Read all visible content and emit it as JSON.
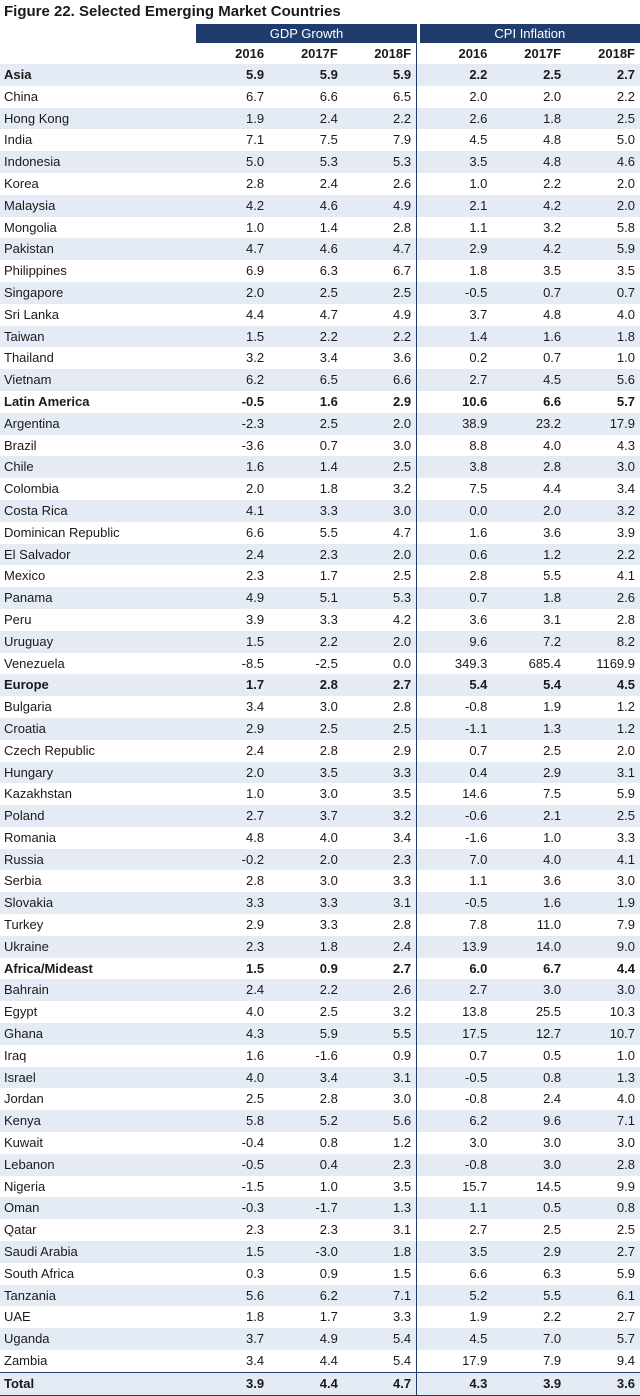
{
  "chart_data": {
    "type": "table",
    "title": "Figure 22. Selected Emerging Market Countries",
    "column_groups": [
      "GDP Growth",
      "CPI Inflation"
    ],
    "years": [
      "2016",
      "2017F",
      "2018F"
    ],
    "rows": [
      {
        "name": "Asia",
        "bold": true,
        "gdp": [
          "5.9",
          "5.9",
          "5.9"
        ],
        "cpi": [
          "2.2",
          "2.5",
          "2.7"
        ]
      },
      {
        "name": "China",
        "gdp": [
          "6.7",
          "6.6",
          "6.5"
        ],
        "cpi": [
          "2.0",
          "2.0",
          "2.2"
        ]
      },
      {
        "name": "Hong Kong",
        "gdp": [
          "1.9",
          "2.4",
          "2.2"
        ],
        "cpi": [
          "2.6",
          "1.8",
          "2.5"
        ]
      },
      {
        "name": "India",
        "gdp": [
          "7.1",
          "7.5",
          "7.9"
        ],
        "cpi": [
          "4.5",
          "4.8",
          "5.0"
        ]
      },
      {
        "name": "Indonesia",
        "gdp": [
          "5.0",
          "5.3",
          "5.3"
        ],
        "cpi": [
          "3.5",
          "4.8",
          "4.6"
        ]
      },
      {
        "name": "Korea",
        "gdp": [
          "2.8",
          "2.4",
          "2.6"
        ],
        "cpi": [
          "1.0",
          "2.2",
          "2.0"
        ]
      },
      {
        "name": "Malaysia",
        "gdp": [
          "4.2",
          "4.6",
          "4.9"
        ],
        "cpi": [
          "2.1",
          "4.2",
          "2.0"
        ]
      },
      {
        "name": "Mongolia",
        "gdp": [
          "1.0",
          "1.4",
          "2.8"
        ],
        "cpi": [
          "1.1",
          "3.2",
          "5.8"
        ]
      },
      {
        "name": "Pakistan",
        "gdp": [
          "4.7",
          "4.6",
          "4.7"
        ],
        "cpi": [
          "2.9",
          "4.2",
          "5.9"
        ]
      },
      {
        "name": "Philippines",
        "gdp": [
          "6.9",
          "6.3",
          "6.7"
        ],
        "cpi": [
          "1.8",
          "3.5",
          "3.5"
        ]
      },
      {
        "name": "Singapore",
        "gdp": [
          "2.0",
          "2.5",
          "2.5"
        ],
        "cpi": [
          "-0.5",
          "0.7",
          "0.7"
        ]
      },
      {
        "name": "Sri Lanka",
        "gdp": [
          "4.4",
          "4.7",
          "4.9"
        ],
        "cpi": [
          "3.7",
          "4.8",
          "4.0"
        ]
      },
      {
        "name": "Taiwan",
        "gdp": [
          "1.5",
          "2.2",
          "2.2"
        ],
        "cpi": [
          "1.4",
          "1.6",
          "1.8"
        ]
      },
      {
        "name": "Thailand",
        "gdp": [
          "3.2",
          "3.4",
          "3.6"
        ],
        "cpi": [
          "0.2",
          "0.7",
          "1.0"
        ]
      },
      {
        "name": "Vietnam",
        "gdp": [
          "6.2",
          "6.5",
          "6.6"
        ],
        "cpi": [
          "2.7",
          "4.5",
          "5.6"
        ]
      },
      {
        "name": "Latin America",
        "bold": true,
        "gdp": [
          "-0.5",
          "1.6",
          "2.9"
        ],
        "cpi": [
          "10.6",
          "6.6",
          "5.7"
        ]
      },
      {
        "name": "Argentina",
        "gdp": [
          "-2.3",
          "2.5",
          "2.0"
        ],
        "cpi": [
          "38.9",
          "23.2",
          "17.9"
        ]
      },
      {
        "name": "Brazil",
        "gdp": [
          "-3.6",
          "0.7",
          "3.0"
        ],
        "cpi": [
          "8.8",
          "4.0",
          "4.3"
        ]
      },
      {
        "name": "Chile",
        "gdp": [
          "1.6",
          "1.4",
          "2.5"
        ],
        "cpi": [
          "3.8",
          "2.8",
          "3.0"
        ]
      },
      {
        "name": "Colombia",
        "gdp": [
          "2.0",
          "1.8",
          "3.2"
        ],
        "cpi": [
          "7.5",
          "4.4",
          "3.4"
        ]
      },
      {
        "name": "Costa Rica",
        "gdp": [
          "4.1",
          "3.3",
          "3.0"
        ],
        "cpi": [
          "0.0",
          "2.0",
          "3.2"
        ]
      },
      {
        "name": "Dominican Republic",
        "gdp": [
          "6.6",
          "5.5",
          "4.7"
        ],
        "cpi": [
          "1.6",
          "3.6",
          "3.9"
        ]
      },
      {
        "name": "El Salvador",
        "gdp": [
          "2.4",
          "2.3",
          "2.0"
        ],
        "cpi": [
          "0.6",
          "1.2",
          "2.2"
        ]
      },
      {
        "name": "Mexico",
        "gdp": [
          "2.3",
          "1.7",
          "2.5"
        ],
        "cpi": [
          "2.8",
          "5.5",
          "4.1"
        ]
      },
      {
        "name": "Panama",
        "gdp": [
          "4.9",
          "5.1",
          "5.3"
        ],
        "cpi": [
          "0.7",
          "1.8",
          "2.6"
        ]
      },
      {
        "name": "Peru",
        "gdp": [
          "3.9",
          "3.3",
          "4.2"
        ],
        "cpi": [
          "3.6",
          "3.1",
          "2.8"
        ]
      },
      {
        "name": "Uruguay",
        "gdp": [
          "1.5",
          "2.2",
          "2.0"
        ],
        "cpi": [
          "9.6",
          "7.2",
          "8.2"
        ]
      },
      {
        "name": "Venezuela",
        "gdp": [
          "-8.5",
          "-2.5",
          "0.0"
        ],
        "cpi": [
          "349.3",
          "685.4",
          "1169.9"
        ]
      },
      {
        "name": "Europe",
        "bold": true,
        "gdp": [
          "1.7",
          "2.8",
          "2.7"
        ],
        "cpi": [
          "5.4",
          "5.4",
          "4.5"
        ]
      },
      {
        "name": "Bulgaria",
        "gdp": [
          "3.4",
          "3.0",
          "2.8"
        ],
        "cpi": [
          "-0.8",
          "1.9",
          "1.2"
        ]
      },
      {
        "name": "Croatia",
        "gdp": [
          "2.9",
          "2.5",
          "2.5"
        ],
        "cpi": [
          "-1.1",
          "1.3",
          "1.2"
        ]
      },
      {
        "name": "Czech Republic",
        "gdp": [
          "2.4",
          "2.8",
          "2.9"
        ],
        "cpi": [
          "0.7",
          "2.5",
          "2.0"
        ]
      },
      {
        "name": "Hungary",
        "gdp": [
          "2.0",
          "3.5",
          "3.3"
        ],
        "cpi": [
          "0.4",
          "2.9",
          "3.1"
        ]
      },
      {
        "name": "Kazakhstan",
        "gdp": [
          "1.0",
          "3.0",
          "3.5"
        ],
        "cpi": [
          "14.6",
          "7.5",
          "5.9"
        ]
      },
      {
        "name": "Poland",
        "gdp": [
          "2.7",
          "3.7",
          "3.2"
        ],
        "cpi": [
          "-0.6",
          "2.1",
          "2.5"
        ]
      },
      {
        "name": "Romania",
        "gdp": [
          "4.8",
          "4.0",
          "3.4"
        ],
        "cpi": [
          "-1.6",
          "1.0",
          "3.3"
        ]
      },
      {
        "name": "Russia",
        "gdp": [
          "-0.2",
          "2.0",
          "2.3"
        ],
        "cpi": [
          "7.0",
          "4.0",
          "4.1"
        ]
      },
      {
        "name": "Serbia",
        "gdp": [
          "2.8",
          "3.0",
          "3.3"
        ],
        "cpi": [
          "1.1",
          "3.6",
          "3.0"
        ]
      },
      {
        "name": "Slovakia",
        "gdp": [
          "3.3",
          "3.3",
          "3.1"
        ],
        "cpi": [
          "-0.5",
          "1.6",
          "1.9"
        ]
      },
      {
        "name": "Turkey",
        "gdp": [
          "2.9",
          "3.3",
          "2.8"
        ],
        "cpi": [
          "7.8",
          "11.0",
          "7.9"
        ]
      },
      {
        "name": "Ukraine",
        "gdp": [
          "2.3",
          "1.8",
          "2.4"
        ],
        "cpi": [
          "13.9",
          "14.0",
          "9.0"
        ]
      },
      {
        "name": "Africa/Mideast",
        "bold": true,
        "gdp": [
          "1.5",
          "0.9",
          "2.7"
        ],
        "cpi": [
          "6.0",
          "6.7",
          "4.4"
        ]
      },
      {
        "name": "Bahrain",
        "gdp": [
          "2.4",
          "2.2",
          "2.6"
        ],
        "cpi": [
          "2.7",
          "3.0",
          "3.0"
        ]
      },
      {
        "name": "Egypt",
        "gdp": [
          "4.0",
          "2.5",
          "3.2"
        ],
        "cpi": [
          "13.8",
          "25.5",
          "10.3"
        ]
      },
      {
        "name": "Ghana",
        "gdp": [
          "4.3",
          "5.9",
          "5.5"
        ],
        "cpi": [
          "17.5",
          "12.7",
          "10.7"
        ]
      },
      {
        "name": "Iraq",
        "gdp": [
          "1.6",
          "-1.6",
          "0.9"
        ],
        "cpi": [
          "0.7",
          "0.5",
          "1.0"
        ]
      },
      {
        "name": "Israel",
        "gdp": [
          "4.0",
          "3.4",
          "3.1"
        ],
        "cpi": [
          "-0.5",
          "0.8",
          "1.3"
        ]
      },
      {
        "name": "Jordan",
        "gdp": [
          "2.5",
          "2.8",
          "3.0"
        ],
        "cpi": [
          "-0.8",
          "2.4",
          "4.0"
        ]
      },
      {
        "name": "Kenya",
        "gdp": [
          "5.8",
          "5.2",
          "5.6"
        ],
        "cpi": [
          "6.2",
          "9.6",
          "7.1"
        ]
      },
      {
        "name": "Kuwait",
        "gdp": [
          "-0.4",
          "0.8",
          "1.2"
        ],
        "cpi": [
          "3.0",
          "3.0",
          "3.0"
        ]
      },
      {
        "name": "Lebanon",
        "gdp": [
          "-0.5",
          "0.4",
          "2.3"
        ],
        "cpi": [
          "-0.8",
          "3.0",
          "2.8"
        ]
      },
      {
        "name": "Nigeria",
        "gdp": [
          "-1.5",
          "1.0",
          "3.5"
        ],
        "cpi": [
          "15.7",
          "14.5",
          "9.9"
        ]
      },
      {
        "name": "Oman",
        "gdp": [
          "-0.3",
          "-1.7",
          "1.3"
        ],
        "cpi": [
          "1.1",
          "0.5",
          "0.8"
        ]
      },
      {
        "name": "Qatar",
        "gdp": [
          "2.3",
          "2.3",
          "3.1"
        ],
        "cpi": [
          "2.7",
          "2.5",
          "2.5"
        ]
      },
      {
        "name": "Saudi Arabia",
        "gdp": [
          "1.5",
          "-3.0",
          "1.8"
        ],
        "cpi": [
          "3.5",
          "2.9",
          "2.7"
        ]
      },
      {
        "name": "South Africa",
        "gdp": [
          "0.3",
          "0.9",
          "1.5"
        ],
        "cpi": [
          "6.6",
          "6.3",
          "5.9"
        ]
      },
      {
        "name": "Tanzania",
        "gdp": [
          "5.6",
          "6.2",
          "7.1"
        ],
        "cpi": [
          "5.2",
          "5.5",
          "6.1"
        ]
      },
      {
        "name": "UAE",
        "gdp": [
          "1.8",
          "1.7",
          "3.3"
        ],
        "cpi": [
          "1.9",
          "2.2",
          "2.7"
        ]
      },
      {
        "name": "Uganda",
        "gdp": [
          "3.7",
          "4.9",
          "5.4"
        ],
        "cpi": [
          "4.5",
          "7.0",
          "5.7"
        ]
      },
      {
        "name": "Zambia",
        "gdp": [
          "3.4",
          "4.4",
          "5.4"
        ],
        "cpi": [
          "17.9",
          "7.9",
          "9.4"
        ]
      },
      {
        "name": "Total",
        "bold": true,
        "total": true,
        "gdp": [
          "3.9",
          "4.4",
          "4.7"
        ],
        "cpi": [
          "4.3",
          "3.9",
          "3.6"
        ]
      }
    ]
  },
  "colors": {
    "header_bg": "#1f3c6d",
    "stripe": "#e4ebf5"
  }
}
